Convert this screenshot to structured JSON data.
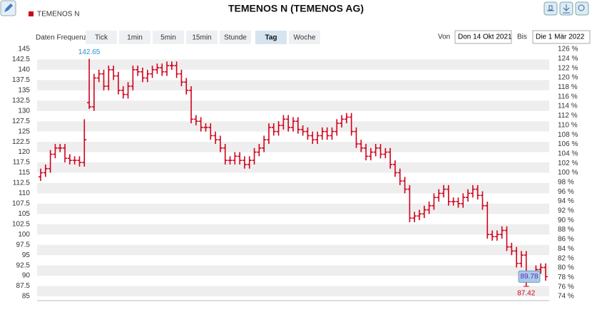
{
  "chart_data": {
    "type": "ohlc",
    "title": "TEMENOS N (TEMENOS AG)",
    "series": [
      {
        "name": "TEMENOS N",
        "color": "#d0021b",
        "open": [
          114,
          115,
          116,
          119.5,
          121,
          121,
          118.5,
          118,
          118,
          117.5,
          132,
          131,
          138,
          139,
          136,
          140,
          138.5,
          135,
          134,
          136,
          140,
          139.5,
          138,
          139,
          140,
          140.5,
          139.5,
          141,
          141,
          139,
          137,
          135,
          128,
          127.5,
          126,
          126,
          124,
          123,
          121,
          118,
          118,
          119,
          118,
          117,
          118,
          120,
          121,
          123,
          126,
          125,
          126.5,
          128,
          126,
          127.5,
          125.5,
          125,
          124,
          123,
          124,
          125,
          124,
          125,
          127,
          128,
          128.5,
          125,
          122,
          121,
          119,
          120,
          121,
          119.5,
          120,
          117,
          115,
          113,
          111,
          104,
          104.5,
          105,
          106,
          107,
          109,
          110,
          111,
          108,
          108,
          107.5,
          109,
          110,
          111,
          109.5,
          107,
          100,
          99.5,
          100,
          101,
          97,
          96,
          93,
          95,
          90,
          90,
          91.5,
          92
        ],
        "high": [
          116,
          117,
          120.5,
          122,
          122,
          122,
          119.5,
          119,
          119,
          128,
          142.65,
          139,
          140,
          140,
          141,
          141,
          139.5,
          136,
          137,
          141,
          141,
          140.5,
          140,
          141,
          141.5,
          141.5,
          142,
          142,
          142,
          140,
          138,
          136,
          129,
          128.5,
          127,
          127,
          125,
          124,
          122,
          119,
          120,
          120,
          119,
          119,
          121,
          122,
          124,
          127,
          127,
          127.5,
          129,
          129,
          128.5,
          128.5,
          126.5,
          126,
          125,
          125,
          126,
          126,
          126,
          128,
          129,
          129.5,
          129.5,
          126,
          123,
          122,
          121,
          122,
          122,
          121,
          121,
          118,
          116,
          114,
          112,
          105.5,
          106,
          107,
          108,
          110,
          111,
          112,
          112,
          109,
          109,
          110,
          111,
          112,
          112,
          110.5,
          108,
          101,
          101,
          102,
          102,
          98,
          97,
          96,
          96,
          91,
          92.5,
          93,
          93
        ],
        "low": [
          113,
          114,
          115,
          118.5,
          120,
          117.5,
          117,
          117,
          116.5,
          116.5,
          130.5,
          130,
          137,
          135,
          135,
          137.5,
          134,
          133,
          133,
          135,
          138.5,
          137,
          137,
          138,
          139,
          138.5,
          138.5,
          140,
          138,
          136,
          134,
          127,
          126.5,
          125,
          125,
          123,
          122,
          120,
          117,
          117,
          117,
          117,
          116,
          116,
          117,
          119,
          120,
          122,
          124,
          124,
          125.5,
          125,
          125,
          124.5,
          124,
          123,
          122,
          122,
          123,
          123,
          123,
          124,
          126,
          127,
          124,
          121,
          120,
          118,
          118,
          119,
          118.5,
          118.5,
          116,
          114,
          112,
          110,
          103,
          103,
          103.5,
          104,
          105,
          106,
          108,
          109,
          107,
          107,
          106.5,
          106.5,
          108,
          109,
          108.5,
          106,
          99,
          98.5,
          98.5,
          99,
          96,
          95,
          92,
          92,
          87.42,
          89,
          89,
          90.5,
          88.78
        ],
        "close": [
          115,
          116,
          119.5,
          121,
          121,
          118.5,
          118,
          118,
          117.5,
          123,
          131,
          138,
          139,
          136,
          140,
          138.5,
          135,
          134,
          136,
          140,
          139.5,
          138,
          139,
          140,
          140.5,
          139.5,
          141,
          141,
          139,
          137,
          135,
          128,
          127.5,
          126,
          126,
          124,
          123,
          121,
          118,
          118,
          119,
          118,
          117,
          118,
          120,
          121,
          123,
          126,
          125,
          126.5,
          128,
          126,
          127.5,
          125.5,
          125,
          124,
          123,
          124,
          125,
          124,
          125,
          127,
          128,
          128.5,
          125,
          122,
          121,
          119,
          120,
          121,
          119.5,
          120,
          117,
          115,
          113,
          111,
          104,
          104.5,
          105,
          106,
          107,
          109,
          110,
          111,
          108,
          108,
          107.5,
          109,
          110,
          111,
          109.5,
          107,
          100,
          99.5,
          100,
          101,
          97,
          96,
          93,
          95,
          90,
          90,
          91.5,
          92,
          89.78
        ]
      }
    ],
    "annotations": {
      "high": 142.65,
      "low": 87.42,
      "last": 89.78
    },
    "ylim": [
      85,
      145
    ],
    "yticks": [
      85,
      87.5,
      90,
      92.5,
      95,
      97.5,
      100,
      102.5,
      105,
      107.5,
      110,
      112.5,
      115,
      117.5,
      120,
      122.5,
      125,
      127.5,
      130,
      132.5,
      135,
      137.5,
      140,
      142.5,
      145
    ],
    "y2lim": [
      74,
      126
    ],
    "y2ticks": [
      {
        "value": 74,
        "label": "74 %"
      },
      {
        "value": 76,
        "label": "76 %"
      },
      {
        "value": 78,
        "label": "78 %"
      },
      {
        "value": 80,
        "label": "80 %"
      },
      {
        "value": 82,
        "label": "82 %"
      },
      {
        "value": 84,
        "label": "84 %"
      },
      {
        "value": 86,
        "label": "86 %"
      },
      {
        "value": 88,
        "label": "88 %"
      },
      {
        "value": 90,
        "label": "90 %"
      },
      {
        "value": 92,
        "label": "92 %"
      },
      {
        "value": 94,
        "label": "94 %"
      },
      {
        "value": 96,
        "label": "96 %"
      },
      {
        "value": 98,
        "label": "98 %"
      },
      {
        "value": 100,
        "label": "100 %"
      },
      {
        "value": 102,
        "label": "102 %"
      },
      {
        "value": 104,
        "label": "104 %"
      },
      {
        "value": 106,
        "label": "106 %"
      },
      {
        "value": 108,
        "label": "108 %"
      },
      {
        "value": 110,
        "label": "110 %"
      },
      {
        "value": 112,
        "label": "112 %"
      },
      {
        "value": 114,
        "label": "114 %"
      },
      {
        "value": 116,
        "label": "116 %"
      },
      {
        "value": 118,
        "label": "118 %"
      },
      {
        "value": 120,
        "label": "120 %"
      },
      {
        "value": 122,
        "label": "122 %"
      },
      {
        "value": 124,
        "label": "124 %"
      },
      {
        "value": 126,
        "label": "126 %"
      }
    ],
    "grid": "bands"
  },
  "toolbar": {
    "frequency_label": "Daten Frequenz",
    "buttons": [
      "Tick",
      "1min",
      "5min",
      "15min",
      "Stunde",
      "Tag",
      "Woche"
    ],
    "active": 5,
    "from_label": "Von",
    "from": "Don 14 Okt 2021",
    "to_label": "Bis",
    "to": "Die 1 Mär 2022"
  }
}
